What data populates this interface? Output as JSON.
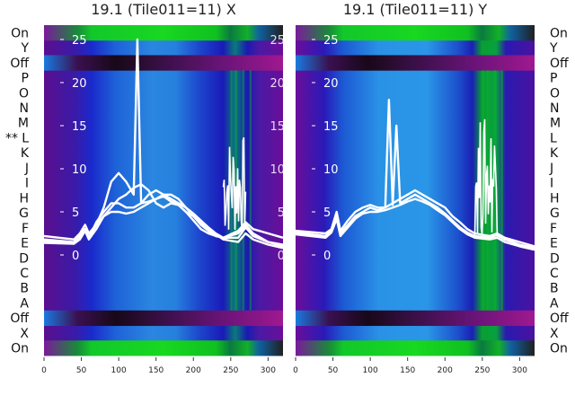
{
  "chart_data": [
    {
      "type": "heatmap",
      "title": "19.1 (Tile011=11) X",
      "xlim": [
        0,
        320
      ],
      "xticks": [
        0,
        50,
        100,
        150,
        200,
        250,
        300
      ],
      "yticks_overlay": [
        "25",
        "20",
        "15",
        "10",
        "5",
        "0"
      ],
      "rows": [
        "On",
        "Y",
        "Off",
        "P",
        "O",
        "N",
        "M",
        "L",
        "K",
        "J",
        "I",
        "H",
        "G",
        "F",
        "E",
        "D",
        "C",
        "B",
        "A",
        "Off",
        "X",
        "On"
      ],
      "row_label_side": "left",
      "marked_row": "L",
      "marker": "**",
      "overlay_lines": [
        {
          "x": [
            0,
            40,
            48,
            55,
            60,
            70,
            80,
            90,
            100,
            110,
            120,
            130,
            140,
            150,
            160,
            170,
            180,
            190,
            200,
            210,
            220,
            230,
            240,
            260,
            270,
            280,
            300,
            320
          ],
          "y": [
            2.2,
            1.8,
            2.5,
            3.5,
            2.5,
            3.5,
            4.5,
            5.5,
            6.5,
            7.0,
            7.8,
            8.2,
            7.5,
            6.0,
            5.5,
            6.0,
            5.8,
            5.0,
            4.0,
            3.0,
            2.5,
            2.2,
            2.0,
            2.8,
            3.8,
            3.0,
            2.5,
            2.0
          ]
        },
        {
          "x": [
            0,
            40,
            48,
            55,
            60,
            70,
            80,
            90,
            100,
            110,
            120,
            125,
            130,
            140,
            150,
            160,
            170,
            180,
            190,
            200,
            210,
            220,
            230,
            240,
            260,
            270,
            280,
            300,
            320
          ],
          "y": [
            1.8,
            1.5,
            2.2,
            3.0,
            2.0,
            3.5,
            5.5,
            8.5,
            9.5,
            8.5,
            7.0,
            25.0,
            6.0,
            6.2,
            6.5,
            7.0,
            7.0,
            6.5,
            5.5,
            4.5,
            3.5,
            2.8,
            2.2,
            2.0,
            2.5,
            3.5,
            2.5,
            1.5,
            1.0
          ]
        },
        {
          "x": [
            0,
            40,
            48,
            55,
            60,
            70,
            80,
            90,
            100,
            110,
            120,
            130,
            140,
            150,
            160,
            170,
            180,
            190,
            200,
            210,
            220,
            230,
            240,
            260,
            270,
            280,
            300,
            320
          ],
          "y": [
            1.6,
            1.4,
            2.0,
            3.0,
            2.0,
            3.8,
            5.0,
            6.0,
            6.0,
            5.5,
            5.5,
            6.0,
            7.0,
            7.5,
            7.0,
            6.5,
            6.0,
            5.5,
            4.8,
            4.0,
            3.2,
            2.5,
            2.0,
            2.0,
            3.2,
            2.2,
            1.5,
            1.2
          ]
        },
        {
          "x": [
            0,
            40,
            48,
            55,
            60,
            70,
            80,
            90,
            100,
            110,
            120,
            130,
            140,
            150,
            160,
            170,
            180,
            190,
            200,
            210,
            220,
            230,
            240,
            260,
            270,
            280,
            300,
            320
          ],
          "y": [
            1.4,
            1.3,
            1.8,
            2.8,
            1.8,
            3.0,
            4.5,
            5.0,
            5.0,
            4.8,
            5.0,
            5.5,
            6.0,
            6.5,
            6.8,
            6.2,
            5.8,
            5.0,
            4.5,
            3.8,
            3.0,
            2.4,
            1.8,
            1.5,
            2.5,
            1.8,
            1.2,
            0.8
          ]
        }
      ],
      "spike_region": {
        "x_from": 240,
        "x_to": 270,
        "y_max": 14
      }
    },
    {
      "type": "heatmap",
      "title": "19.1 (Tile011=11) Y",
      "xlim": [
        0,
        320
      ],
      "xticks": [
        0,
        50,
        100,
        150,
        200,
        250,
        300
      ],
      "yticks_overlay": [
        "25",
        "20",
        "15",
        "10",
        "5",
        "0"
      ],
      "rows": [
        "On",
        "Y",
        "Off",
        "P",
        "O",
        "N",
        "M",
        "L",
        "K",
        "J",
        "I",
        "H",
        "G",
        "F",
        "E",
        "D",
        "C",
        "B",
        "A",
        "Off",
        "X",
        "On"
      ],
      "row_label_side": "right",
      "overlay_lines": [
        {
          "x": [
            0,
            40,
            48,
            55,
            60,
            70,
            80,
            90,
            100,
            110,
            120,
            130,
            140,
            150,
            160,
            170,
            180,
            190,
            200,
            210,
            220,
            230,
            240,
            260,
            270,
            280,
            300,
            320
          ],
          "y": [
            2.8,
            2.5,
            3.0,
            5.0,
            2.8,
            4.0,
            5.0,
            5.5,
            5.8,
            5.5,
            5.5,
            6.0,
            6.5,
            7.0,
            7.5,
            7.0,
            6.5,
            6.0,
            5.5,
            4.5,
            3.8,
            3.0,
            2.5,
            2.2,
            2.5,
            2.0,
            1.5,
            1.0
          ]
        },
        {
          "x": [
            0,
            40,
            48,
            55,
            60,
            70,
            80,
            90,
            100,
            110,
            120,
            125,
            130,
            135,
            140,
            150,
            160,
            170,
            180,
            190,
            200,
            210,
            220,
            230,
            240,
            260,
            270,
            280,
            300,
            320
          ],
          "y": [
            2.6,
            2.2,
            2.8,
            4.5,
            2.5,
            3.5,
            4.5,
            5.0,
            5.5,
            5.2,
            5.5,
            18.0,
            5.8,
            15.0,
            6.0,
            6.5,
            7.0,
            6.5,
            6.0,
            5.5,
            4.8,
            4.0,
            3.2,
            2.6,
            2.2,
            2.0,
            2.3,
            1.8,
            1.2,
            0.8
          ]
        },
        {
          "x": [
            0,
            40,
            48,
            55,
            60,
            70,
            80,
            90,
            100,
            110,
            120,
            130,
            140,
            150,
            160,
            170,
            180,
            190,
            200,
            210,
            220,
            230,
            240,
            260,
            270,
            280,
            300,
            320
          ],
          "y": [
            2.4,
            2.0,
            2.6,
            4.2,
            2.2,
            3.2,
            4.2,
            4.8,
            5.0,
            5.0,
            5.2,
            5.5,
            5.8,
            6.2,
            6.5,
            6.2,
            5.8,
            5.2,
            4.6,
            3.8,
            3.0,
            2.4,
            2.0,
            1.8,
            2.0,
            1.5,
            1.0,
            0.6
          ]
        }
      ],
      "spike_region": {
        "x_from": 240,
        "x_to": 270,
        "y_max": 16
      }
    }
  ]
}
